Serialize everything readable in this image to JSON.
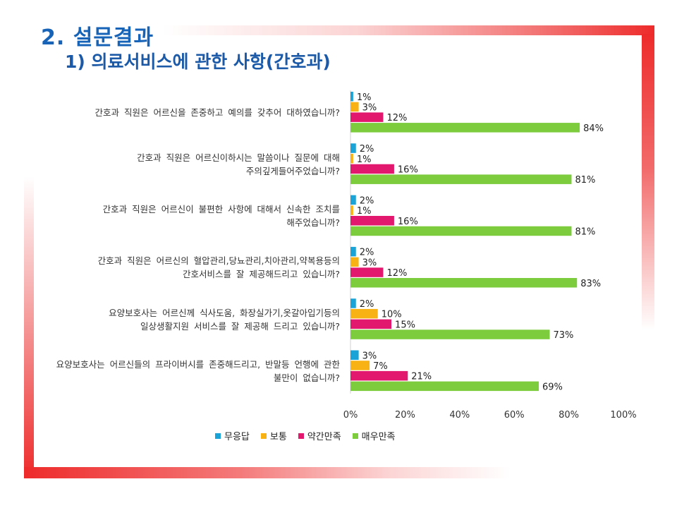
{
  "slide": {
    "title": "2. 설문결과",
    "subtitle": "1) 의료서비스에 관한 사항(간호과)"
  },
  "chart_data": {
    "type": "bar",
    "orientation": "horizontal",
    "categories": [
      "간호과 직원은 어르신을 존중하고 예의를 갖추어 대하였습니까?",
      "간호과 직원은 어르신이하시는 말씀이나 질문에 대해\n주의깊게들어주었습니까?",
      "간호과 직원은 어르신이 불편한 사항에 대해서 신속한 조치를\n해주었습니까?",
      "간호과 직원은 어르신의 혈압관리,당뇨관리,치아관리,약복용등의\n간호서비스를 잘 제공해드리고 있습니까?",
      "요양보호사는 어르신께 식사도움, 화장실가기,옷갈아입기등의\n일상생활지원 서비스를 잘 제공해 드리고 있습니까?",
      "요양보호사는 어르신들의 프라이버시를 존중해드리고, 반말등 언행에 관한\n불만이 없습니까?"
    ],
    "series": [
      {
        "name": "무응답",
        "color": "#1aa3d6",
        "values": [
          1,
          2,
          2,
          2,
          2,
          3
        ],
        "labels": [
          "1%",
          "2%",
          "2%",
          "2%",
          "2%",
          "3%"
        ]
      },
      {
        "name": "보통",
        "color": "#f9b214",
        "values": [
          3,
          1,
          1,
          3,
          10,
          7
        ],
        "labels": [
          "3%",
          "1%",
          "1%",
          "3%",
          "10%",
          "7%"
        ]
      },
      {
        "name": "약간만족",
        "color": "#e2176e",
        "values": [
          12,
          16,
          16,
          12,
          15,
          21
        ],
        "labels": [
          "12%",
          "16%",
          "16%",
          "12%",
          "15%",
          "21%"
        ]
      },
      {
        "name": "매우만족",
        "color": "#7ccc3d",
        "values": [
          84,
          81,
          81,
          83,
          73,
          69
        ],
        "labels": [
          "84%",
          "81%",
          "81%",
          "83%",
          "73%",
          "69%"
        ]
      }
    ],
    "xlim": [
      0,
      100
    ],
    "x_ticks": [
      0,
      20,
      40,
      60,
      80,
      100
    ],
    "x_tick_labels": [
      "0%",
      "20%",
      "40%",
      "60%",
      "80%",
      "100%"
    ],
    "grid": false,
    "legend": "bottom"
  }
}
